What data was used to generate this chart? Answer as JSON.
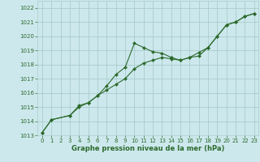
{
  "background_color": "#cce8ec",
  "grid_color": "#aacccc",
  "line_color": "#2d6a2d",
  "ylim": [
    1013,
    1022.5
  ],
  "xlim": [
    -0.5,
    23.5
  ],
  "yticks": [
    1013,
    1014,
    1015,
    1016,
    1017,
    1018,
    1019,
    1020,
    1021,
    1022
  ],
  "xticks": [
    0,
    1,
    2,
    3,
    4,
    5,
    6,
    7,
    8,
    9,
    10,
    11,
    12,
    13,
    14,
    15,
    16,
    17,
    18,
    19,
    20,
    21,
    22,
    23
  ],
  "series1_x": [
    0,
    1,
    3,
    4,
    5,
    6,
    7,
    8,
    9,
    10,
    11,
    12,
    13,
    14,
    15,
    16,
    17,
    18,
    19,
    20,
    21,
    22,
    23
  ],
  "series1_y": [
    1013.2,
    1014.1,
    1014.4,
    1015.1,
    1015.3,
    1015.8,
    1016.2,
    1016.6,
    1017.0,
    1017.7,
    1018.1,
    1018.3,
    1018.5,
    1018.4,
    1018.3,
    1018.5,
    1018.6,
    1019.2,
    1020.0,
    1020.8,
    1021.0,
    1021.4,
    1021.6
  ],
  "series2_x": [
    0,
    1,
    3,
    4,
    5,
    6,
    7,
    8,
    9,
    10,
    11,
    12,
    13,
    14
  ],
  "series2_y": [
    1013.2,
    1014.1,
    1014.4,
    1015.0,
    1015.3,
    1015.8,
    1016.5,
    1017.3,
    1017.8,
    1019.5,
    1019.2,
    1018.9,
    1018.8,
    1018.5
  ],
  "series3_x": [
    14,
    15,
    16,
    17,
    18,
    19,
    20,
    21,
    22,
    23
  ],
  "series3_y": [
    1018.5,
    1018.3,
    1018.5,
    1018.85,
    1019.2,
    1020.0,
    1020.8,
    1021.0,
    1021.4,
    1021.6
  ],
  "xlabel": "Graphe pression niveau de la mer (hPa)",
  "tick_fontsize": 5.0,
  "label_fontsize": 6.0
}
